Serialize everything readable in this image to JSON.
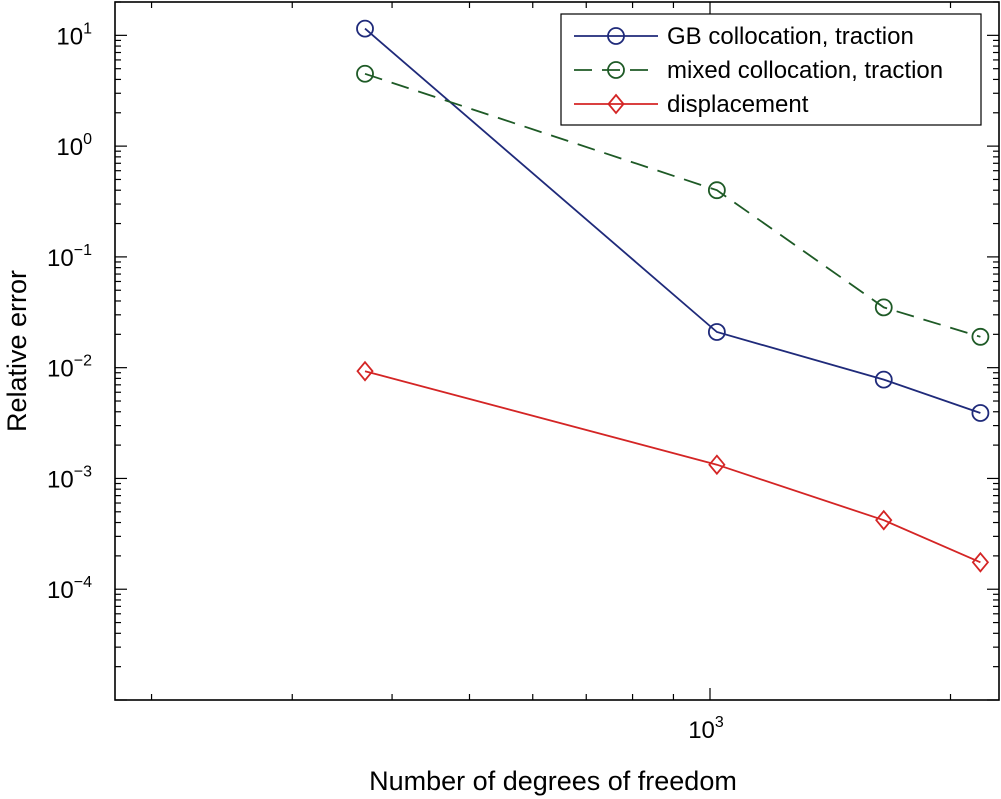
{
  "chart_data": {
    "type": "line",
    "title": "",
    "xlabel": "Number of degrees of freedom",
    "ylabel": "Relative error",
    "xscale": "log",
    "yscale": "log",
    "xlim": [
      180,
      2300
    ],
    "ylim": [
      1e-05,
      20
    ],
    "x_ticks": [
      {
        "value": 1000,
        "base": "10",
        "exp": "3"
      }
    ],
    "y_ticks": [
      {
        "value": 10,
        "base": "10",
        "exp": "1"
      },
      {
        "value": 1,
        "base": "10",
        "exp": "0"
      },
      {
        "value": 0.1,
        "base": "10",
        "exp": "−1"
      },
      {
        "value": 0.01,
        "base": "10",
        "exp": "−2"
      },
      {
        "value": 0.001,
        "base": "10",
        "exp": "−3"
      },
      {
        "value": 0.0001,
        "base": "10",
        "exp": "−4"
      }
    ],
    "grid": false,
    "legend_position": "top-right",
    "series": [
      {
        "name": "GB collocation, traction",
        "color": "#1f2a7a",
        "line_style": "solid",
        "marker": "circle",
        "x": [
          370,
          1020,
          1650,
          2180
        ],
        "y": [
          11.5,
          0.021,
          0.0078,
          0.0039
        ]
      },
      {
        "name": "mixed collocation, traction",
        "color": "#1e5a26",
        "line_style": "dashed",
        "marker": "circle",
        "x": [
          370,
          1020,
          1650,
          2180
        ],
        "y": [
          4.5,
          0.4,
          0.035,
          0.019
        ]
      },
      {
        "name": "displacement",
        "color": "#d42525",
        "line_style": "solid",
        "marker": "diamond",
        "x": [
          370,
          1020,
          1650,
          2180
        ],
        "y": [
          0.0093,
          0.00133,
          0.00042,
          0.000175
        ]
      }
    ]
  }
}
